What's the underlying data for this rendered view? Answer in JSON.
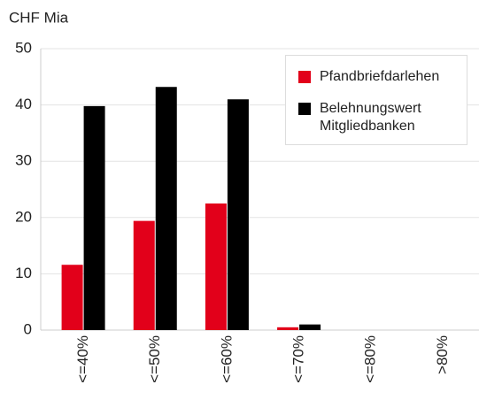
{
  "chart_data": {
    "type": "bar",
    "y_label": "CHF Mia",
    "categories": [
      "<=40%",
      "<=50%",
      "<=60%",
      "<=70%",
      "<=80%",
      ">80%"
    ],
    "series": [
      {
        "name": "Pfandbriefdarlehen",
        "color": "#e2001a",
        "values": [
          11.6,
          19.4,
          22.5,
          0.5,
          0,
          0
        ]
      },
      {
        "name": "Belehnungswert Mitgliedbanken",
        "color": "#000000",
        "values": [
          39.8,
          43.2,
          41.0,
          1.0,
          0,
          0
        ]
      }
    ],
    "ylim": [
      0,
      50
    ],
    "yticks": [
      0,
      10,
      20,
      30,
      40,
      50
    ],
    "grid": true,
    "legend": "upper right"
  }
}
